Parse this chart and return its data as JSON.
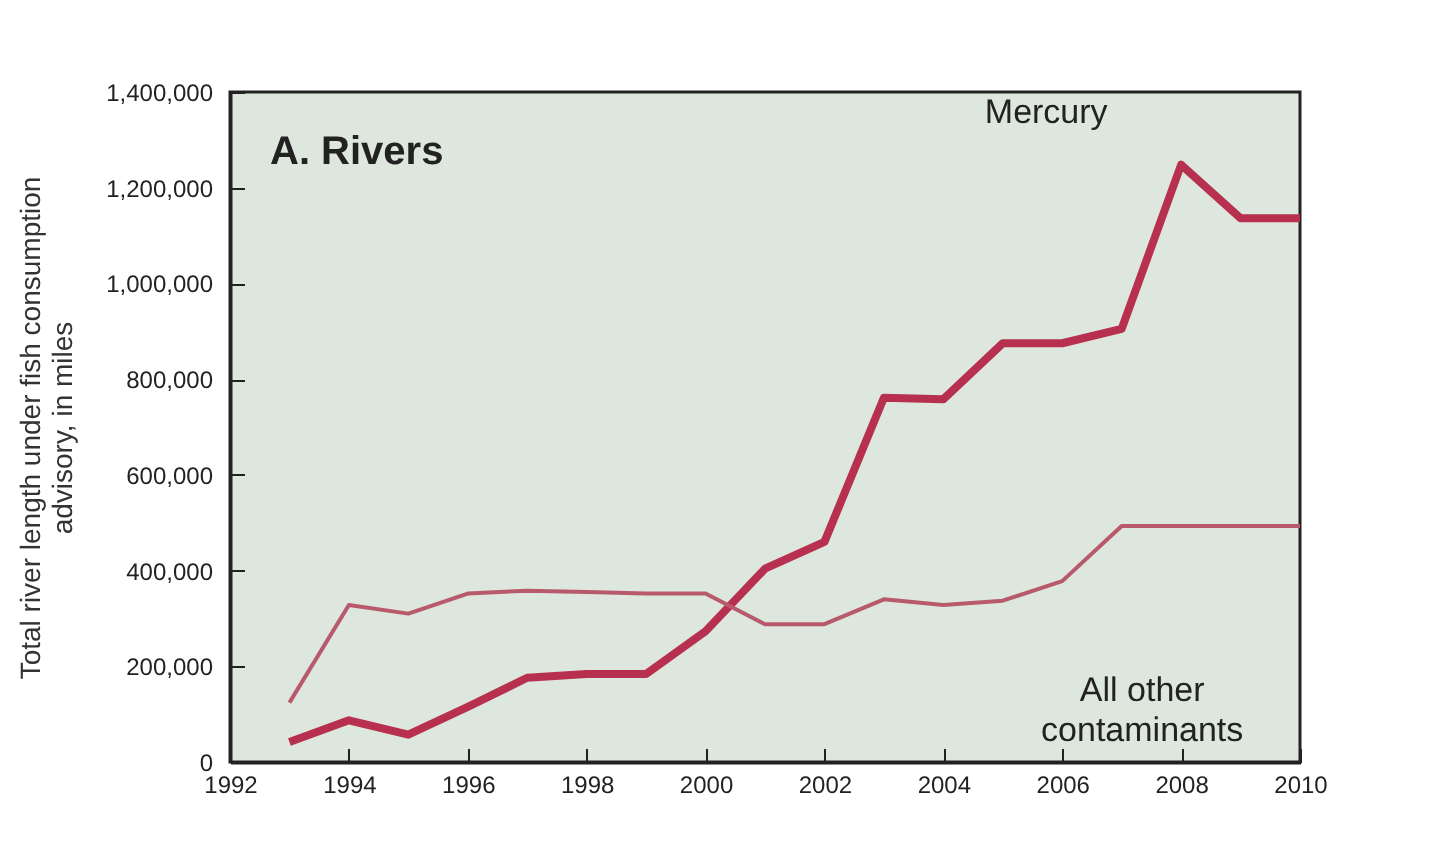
{
  "chart_data": {
    "type": "line",
    "title": "A. Rivers",
    "ylabel": "Total river length under fish consumption advisory, in miles",
    "x": [
      1993,
      1994,
      1995,
      1996,
      1997,
      1998,
      1999,
      2000,
      2001,
      2002,
      2003,
      2004,
      2005,
      2006,
      2007,
      2008,
      2009,
      2010
    ],
    "series": [
      {
        "name": "Mercury",
        "color": "#b8304f",
        "values": [
          42000,
          87000,
          57000,
          115000,
          176000,
          184000,
          184000,
          273000,
          404000,
          460000,
          761000,
          758000,
          875000,
          875000,
          905000,
          1248000,
          1136000,
          1136000
        ]
      },
      {
        "name": "All other contaminants",
        "color": "#b85a6c",
        "values": [
          124000,
          328000,
          310000,
          352000,
          358000,
          355000,
          352000,
          352000,
          288000,
          288000,
          340000,
          328000,
          337000,
          378000,
          493000,
          493000,
          493000,
          493000
        ]
      }
    ],
    "xlim": [
      1992,
      2010
    ],
    "xticks": [
      1992,
      1994,
      1996,
      1998,
      2000,
      2002,
      2004,
      2006,
      2008,
      2010
    ],
    "ylim": [
      0,
      1400000
    ],
    "yticks": [
      0,
      {
        "value": 200000,
        "label": "200,000"
      },
      {
        "value": 400000,
        "label": "400,000"
      },
      {
        "value": 600000,
        "label": "600,000"
      },
      {
        "value": 800000,
        "label": "800,000"
      },
      {
        "value": 1000000,
        "label": "1,000,000"
      },
      {
        "value": 1200000,
        "label": "1,200,000"
      },
      {
        "value": 1400000,
        "label": "1,400,000"
      }
    ],
    "grid": false,
    "legend": false,
    "marker": "none",
    "line_style": "solid"
  }
}
